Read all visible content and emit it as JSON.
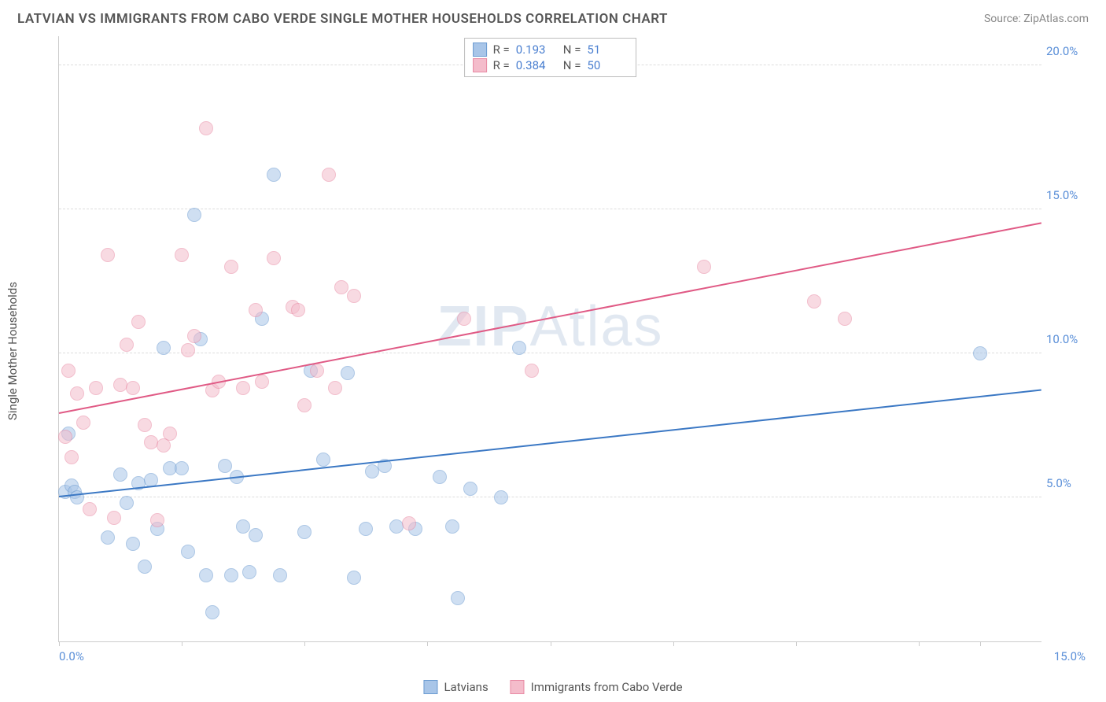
{
  "title": "LATVIAN VS IMMIGRANTS FROM CABO VERDE SINGLE MOTHER HOUSEHOLDS CORRELATION CHART",
  "source": "Source: ZipAtlas.com",
  "watermark": {
    "bold": "ZIP",
    "rest": "Atlas"
  },
  "y_axis_label": "Single Mother Households",
  "chart": {
    "type": "scatter",
    "xlim": [
      0,
      16
    ],
    "ylim": [
      0,
      21
    ],
    "xtick_positions": [
      0,
      2,
      4,
      6,
      8,
      10,
      12,
      14,
      15
    ],
    "xtick_labels": {
      "0": "0.0%",
      "15": "15.0%"
    },
    "ytick_positions": [
      5,
      10,
      15,
      20
    ],
    "ytick_labels": {
      "5": "5.0%",
      "10": "10.0%",
      "15": "15.0%",
      "20": "20.0%"
    },
    "grid_color": "#dddddd",
    "background_color": "#ffffff",
    "series": [
      {
        "name": "Latvians",
        "color_fill": "#a8c5e8",
        "color_stroke": "#6b9bd1",
        "line_color": "#3b78c4",
        "R": "0.193",
        "N": "51",
        "trend": {
          "x1": 0,
          "y1": 5.0,
          "x2": 16,
          "y2": 8.7
        },
        "points": [
          [
            0.1,
            5.2
          ],
          [
            0.15,
            7.2
          ],
          [
            0.2,
            5.4
          ],
          [
            0.25,
            5.2
          ],
          [
            0.3,
            5.0
          ],
          [
            1.0,
            5.8
          ],
          [
            0.8,
            3.6
          ],
          [
            1.1,
            4.8
          ],
          [
            1.2,
            3.4
          ],
          [
            1.3,
            5.5
          ],
          [
            1.4,
            2.6
          ],
          [
            1.5,
            5.6
          ],
          [
            1.6,
            3.9
          ],
          [
            1.7,
            10.2
          ],
          [
            1.8,
            6.0
          ],
          [
            2.0,
            6.0
          ],
          [
            2.1,
            3.1
          ],
          [
            2.2,
            14.8
          ],
          [
            2.3,
            10.5
          ],
          [
            2.4,
            2.3
          ],
          [
            2.5,
            1.0
          ],
          [
            2.7,
            6.1
          ],
          [
            2.8,
            2.3
          ],
          [
            2.9,
            5.7
          ],
          [
            3.0,
            4.0
          ],
          [
            3.1,
            2.4
          ],
          [
            3.2,
            3.7
          ],
          [
            3.3,
            11.2
          ],
          [
            3.5,
            16.2
          ],
          [
            3.6,
            2.3
          ],
          [
            4.0,
            3.8
          ],
          [
            4.1,
            9.4
          ],
          [
            4.3,
            6.3
          ],
          [
            4.7,
            9.3
          ],
          [
            4.8,
            2.2
          ],
          [
            5.0,
            3.9
          ],
          [
            5.1,
            5.9
          ],
          [
            5.3,
            6.1
          ],
          [
            5.5,
            4.0
          ],
          [
            5.8,
            3.9
          ],
          [
            6.2,
            5.7
          ],
          [
            6.4,
            4.0
          ],
          [
            6.5,
            1.5
          ],
          [
            6.7,
            5.3
          ],
          [
            7.2,
            5.0
          ],
          [
            7.5,
            10.2
          ],
          [
            15.0,
            10.0
          ]
        ]
      },
      {
        "name": "Immigrants from Cabo Verde",
        "color_fill": "#f4bccb",
        "color_stroke": "#e88aa4",
        "line_color": "#e05a85",
        "R": "0.384",
        "N": "50",
        "trend": {
          "x1": 0,
          "y1": 7.9,
          "x2": 16,
          "y2": 14.5
        },
        "points": [
          [
            0.1,
            7.1
          ],
          [
            0.15,
            9.4
          ],
          [
            0.2,
            6.4
          ],
          [
            0.3,
            8.6
          ],
          [
            0.4,
            7.6
          ],
          [
            0.5,
            4.6
          ],
          [
            0.6,
            8.8
          ],
          [
            0.8,
            13.4
          ],
          [
            0.9,
            4.3
          ],
          [
            1.0,
            8.9
          ],
          [
            1.1,
            10.3
          ],
          [
            1.2,
            8.8
          ],
          [
            1.3,
            11.1
          ],
          [
            1.4,
            7.5
          ],
          [
            1.5,
            6.9
          ],
          [
            1.6,
            4.2
          ],
          [
            1.7,
            6.8
          ],
          [
            1.8,
            7.2
          ],
          [
            2.0,
            13.4
          ],
          [
            2.1,
            10.1
          ],
          [
            2.2,
            10.6
          ],
          [
            2.4,
            17.8
          ],
          [
            2.5,
            8.7
          ],
          [
            2.6,
            9.0
          ],
          [
            2.8,
            13.0
          ],
          [
            3.0,
            8.8
          ],
          [
            3.2,
            11.5
          ],
          [
            3.3,
            9.0
          ],
          [
            3.5,
            13.3
          ],
          [
            3.8,
            11.6
          ],
          [
            3.9,
            11.5
          ],
          [
            4.0,
            8.2
          ],
          [
            4.2,
            9.4
          ],
          [
            4.4,
            16.2
          ],
          [
            4.5,
            8.8
          ],
          [
            4.6,
            12.3
          ],
          [
            4.8,
            12.0
          ],
          [
            5.7,
            4.1
          ],
          [
            6.6,
            11.2
          ],
          [
            7.7,
            9.4
          ],
          [
            10.5,
            13.0
          ],
          [
            12.3,
            11.8
          ],
          [
            12.8,
            11.2
          ]
        ]
      }
    ]
  },
  "legend_top_labels": {
    "R": "R  =",
    "N": "N  ="
  },
  "legend_bottom": [
    "Latvians",
    "Immigrants from Cabo Verde"
  ]
}
